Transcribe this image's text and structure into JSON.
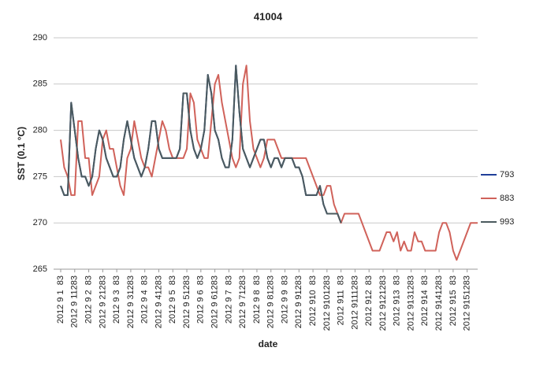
{
  "chart_data": {
    "type": "line",
    "title": "41004",
    "y_label": "SST (0.1 °C)",
    "x_label": "date",
    "categories": [
      "2012 9 1  83",
      null,
      null,
      null,
      "2012 9 11283",
      null,
      null,
      null,
      "2012 9 2  83",
      null,
      null,
      null,
      "2012 9 21283",
      null,
      null,
      null,
      "2012 9 3  83",
      null,
      null,
      null,
      "2012 9 31283",
      null,
      null,
      null,
      "2012 9 4  83",
      null,
      null,
      null,
      "2012 9 41283",
      null,
      null,
      null,
      "2012 9 5  83",
      null,
      null,
      null,
      "2012 9 51283",
      null,
      null,
      null,
      "2012 9 6  83",
      null,
      null,
      null,
      "2012 9 61283",
      null,
      null,
      null,
      "2012 9 7  83",
      null,
      null,
      null,
      "2012 9 71283",
      null,
      null,
      null,
      "2012 9 8  83",
      null,
      null,
      null,
      "2012 9 81283",
      null,
      null,
      null,
      "2012 9 9  83",
      null,
      null,
      null,
      "2012 9 91283",
      null,
      null,
      null,
      "2012 910  83",
      null,
      null,
      null,
      "2012 9101283",
      null,
      null,
      null,
      "2012 911  83",
      null,
      null,
      null,
      "2012 9111283",
      null,
      null,
      null,
      "2012 912  83",
      null,
      null,
      null,
      "2012 9121283",
      null,
      null,
      null,
      "2012 913  83",
      null,
      null,
      null,
      "2012 9131283",
      null,
      null,
      null,
      "2012 914  83",
      null,
      null,
      null,
      "2012 9141283",
      null,
      null,
      null,
      "2012 915  83",
      null,
      null,
      null,
      "2012 9151283",
      null,
      null,
      null
    ],
    "series": [
      {
        "name": "793",
        "color": "#1f3f99",
        "values": [
          274,
          273,
          273,
          283,
          280,
          277,
          275,
          275,
          274,
          275,
          278,
          280,
          279,
          277,
          276,
          275,
          275,
          276,
          279,
          281,
          279,
          277,
          276,
          275,
          276,
          278,
          281,
          281,
          278,
          277,
          277,
          277,
          277,
          277,
          278,
          284,
          284,
          280,
          278,
          277,
          278,
          280,
          286,
          284,
          280,
          279,
          277,
          276,
          276,
          279,
          287,
          282,
          278,
          277,
          276,
          277,
          278,
          279,
          279,
          277,
          276,
          277,
          277,
          276,
          277,
          277,
          277,
          276,
          276,
          275,
          273,
          273,
          273,
          273,
          274,
          272,
          271,
          271,
          271,
          271,
          270,
          null,
          null,
          null,
          null,
          null,
          null,
          null,
          null,
          null,
          null,
          null,
          null,
          null,
          null,
          null,
          null,
          null,
          null,
          null,
          null,
          null,
          null,
          null,
          null,
          null,
          null,
          null,
          null,
          null,
          null,
          null,
          null,
          null,
          null,
          null,
          null,
          null,
          null,
          null
        ]
      },
      {
        "name": "883",
        "color": "#d0625a",
        "values": [
          279,
          276,
          275,
          273,
          273,
          281,
          281,
          277,
          277,
          273,
          274,
          275,
          279,
          280,
          278,
          278,
          276,
          274,
          273,
          277,
          278,
          281,
          279,
          277,
          276,
          276,
          275,
          277,
          279,
          281,
          280,
          278,
          277,
          277,
          277,
          277,
          278,
          284,
          283,
          279,
          278,
          277,
          277,
          281,
          285,
          286,
          283,
          281,
          279,
          277,
          276,
          277,
          285,
          287,
          281,
          278,
          277,
          276,
          277,
          279,
          279,
          279,
          278,
          277,
          277,
          277,
          277,
          277,
          277,
          277,
          277,
          276,
          275,
          274,
          273,
          273,
          274,
          274,
          272,
          271,
          270,
          271,
          271,
          271,
          271,
          271,
          270,
          269,
          268,
          267,
          267,
          267,
          268,
          269,
          269,
          268,
          269,
          267,
          268,
          267,
          267,
          269,
          268,
          268,
          267,
          267,
          267,
          267,
          269,
          270,
          270,
          269,
          267,
          266,
          267,
          268,
          269,
          270,
          270,
          270
        ]
      },
      {
        "name": "993",
        "color": "#4b5a5e",
        "values": [
          274,
          273,
          273,
          283,
          280,
          277,
          275,
          275,
          274,
          275,
          278,
          280,
          279,
          277,
          276,
          275,
          275,
          276,
          279,
          281,
          279,
          277,
          276,
          275,
          276,
          278,
          281,
          281,
          278,
          277,
          277,
          277,
          277,
          277,
          278,
          284,
          284,
          280,
          278,
          277,
          278,
          280,
          286,
          284,
          280,
          279,
          277,
          276,
          276,
          279,
          287,
          282,
          278,
          277,
          276,
          277,
          278,
          279,
          279,
          277,
          276,
          277,
          277,
          276,
          277,
          277,
          277,
          276,
          276,
          275,
          273,
          273,
          273,
          273,
          274,
          272,
          271,
          271,
          271,
          271,
          270,
          null,
          null,
          null,
          null,
          null,
          null,
          null,
          null,
          null,
          null,
          null,
          null,
          null,
          null,
          null,
          null,
          null,
          null,
          null,
          null,
          null,
          null,
          null,
          null,
          null,
          null,
          null,
          null,
          null,
          null,
          null,
          null,
          null,
          null,
          null,
          null,
          null,
          null,
          null
        ]
      }
    ],
    "ylim": [
      265,
      290
    ],
    "yticks": [
      265,
      270,
      275,
      280,
      285,
      290
    ],
    "grid": true,
    "legend": "right"
  }
}
